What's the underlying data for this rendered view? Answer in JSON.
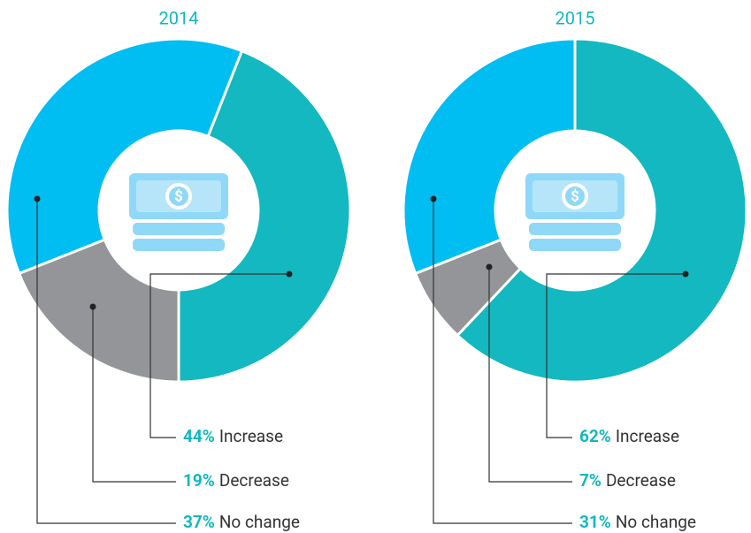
{
  "chart_data": [
    {
      "type": "pie",
      "title": "2014",
      "categories": [
        "Increase",
        "Decrease",
        "No change"
      ],
      "values": [
        44,
        19,
        37
      ],
      "value_labels": [
        "44%",
        "19%",
        "37%"
      ],
      "colors": [
        "#13b8c0",
        "#939598",
        "#00bdf2"
      ]
    },
    {
      "type": "pie",
      "title": "2015",
      "categories": [
        "Increase",
        "Decrease",
        "No change"
      ],
      "values": [
        62,
        7,
        31
      ],
      "value_labels": [
        "62%",
        "7%",
        "31%"
      ],
      "colors": [
        "#13b8c0",
        "#939598",
        "#00bdf2"
      ]
    }
  ]
}
